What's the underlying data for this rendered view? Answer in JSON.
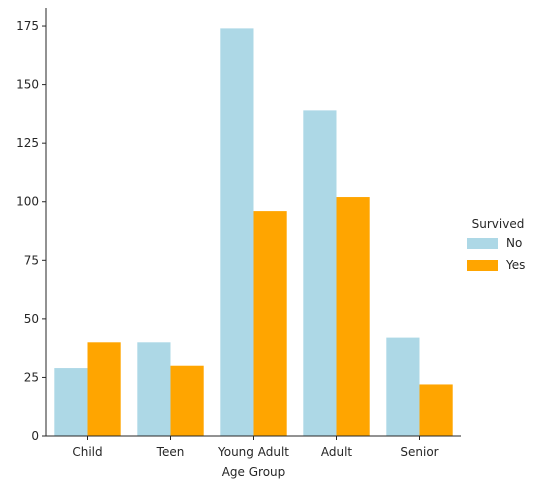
{
  "chart_data": {
    "type": "bar",
    "title": "",
    "xlabel": "Age Group",
    "ylabel": "",
    "categories": [
      "Child",
      "Teen",
      "Young Adult",
      "Adult",
      "Senior"
    ],
    "series": [
      {
        "name": "No",
        "values": [
          29,
          40,
          174,
          139,
          42
        ],
        "color": "#add8e6"
      },
      {
        "name": "Yes",
        "values": [
          40,
          30,
          96,
          102,
          22
        ],
        "color": "#ffa500"
      }
    ],
    "ylim": [
      0,
      182.7
    ],
    "yticks": [
      0,
      25,
      50,
      75,
      100,
      125,
      150,
      175
    ],
    "grid": false,
    "legend": {
      "title": "Survived",
      "placement": "center-right"
    }
  }
}
